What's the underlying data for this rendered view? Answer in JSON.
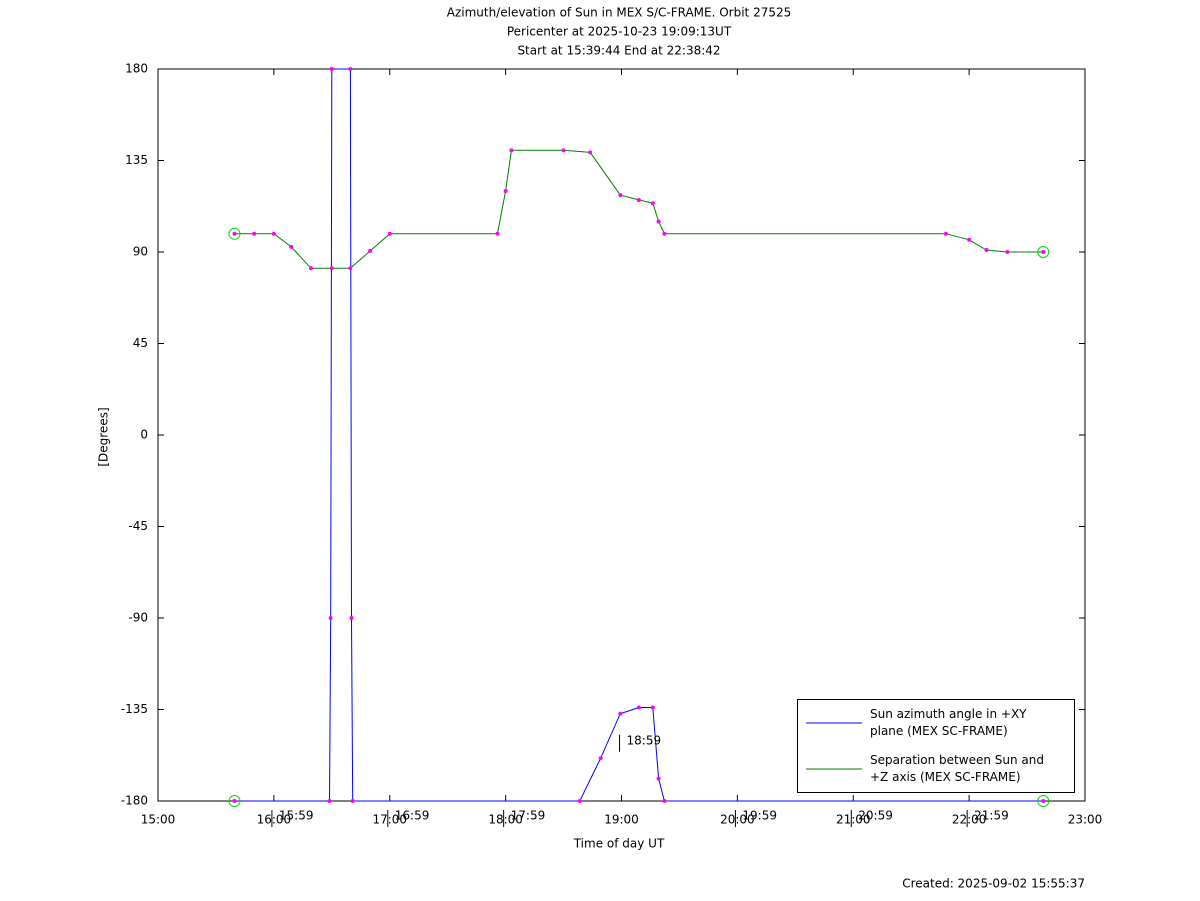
{
  "chart_data": {
    "type": "line",
    "title": "Azimuth/elevation of Sun in MEX S/C-FRAME.  Orbit 27525",
    "subtitle": "Pericenter at 2025-10-23 19:09:13UT",
    "subtitle2": "Start at 15:39:44 End at 22:38:42",
    "xlabel": "Time of day UT",
    "ylabel": "[Degrees]",
    "footer": "Created: 2025-09-02 15:55:37",
    "xlim": [
      15,
      23
    ],
    "xticks": [
      {
        "value": 15,
        "label": "15:00"
      },
      {
        "value": 16,
        "label": "16:00"
      },
      {
        "value": 17,
        "label": "17:00"
      },
      {
        "value": 18,
        "label": "18:00"
      },
      {
        "value": 19,
        "label": "19:00"
      },
      {
        "value": 20,
        "label": "20:00"
      },
      {
        "value": 21,
        "label": "21:00"
      },
      {
        "value": 22,
        "label": "22:00"
      },
      {
        "value": 23,
        "label": "23:00"
      }
    ],
    "ylim": [
      -180,
      180
    ],
    "yticks": [
      -180,
      -135,
      -90,
      -45,
      0,
      45,
      90,
      135,
      180
    ],
    "series": [
      {
        "name": "Sun azimuth angle in +XY plane (MEX SC-FRAME)",
        "color": "#0000ff",
        "x": [
          15.66,
          16.48,
          16.49,
          16.5,
          16.66,
          16.67,
          16.68,
          18.64,
          18.82,
          18.99,
          19.15,
          19.27,
          19.32,
          19.37,
          22.64
        ],
        "values": [
          -180,
          -180,
          -90,
          180,
          180,
          -90,
          -180,
          -180,
          -159,
          -137,
          -134,
          -134,
          -169,
          -180,
          -180
        ]
      },
      {
        "name": "Separation between Sun and +Z axis (MEX SC-FRAME)",
        "color": "#008000",
        "x": [
          15.66,
          15.83,
          16.0,
          16.15,
          16.32,
          16.5,
          16.66,
          16.83,
          17.0,
          17.93,
          18.0,
          18.05,
          18.5,
          18.73,
          18.99,
          19.15,
          19.27,
          19.32,
          19.37,
          21.8,
          22.0,
          22.15,
          22.33,
          22.64
        ],
        "values": [
          99,
          99,
          99,
          92.5,
          82,
          82,
          82,
          90.5,
          99,
          99,
          120,
          140,
          140,
          139,
          118,
          115.6,
          114,
          105,
          99,
          99,
          96,
          91,
          90,
          90
        ]
      }
    ],
    "annotations": [
      {
        "x": 15.983,
        "y": -180,
        "text": "15:59"
      },
      {
        "x": 16.983,
        "y": -180,
        "text": "16:59"
      },
      {
        "x": 17.983,
        "y": -180,
        "text": "17:59"
      },
      {
        "x": 18.983,
        "y": -143,
        "text": "18:59"
      },
      {
        "x": 19.983,
        "y": -180,
        "text": "19:59"
      },
      {
        "x": 20.983,
        "y": -180,
        "text": "20:59"
      },
      {
        "x": 21.983,
        "y": -180,
        "text": "21:59"
      }
    ]
  }
}
